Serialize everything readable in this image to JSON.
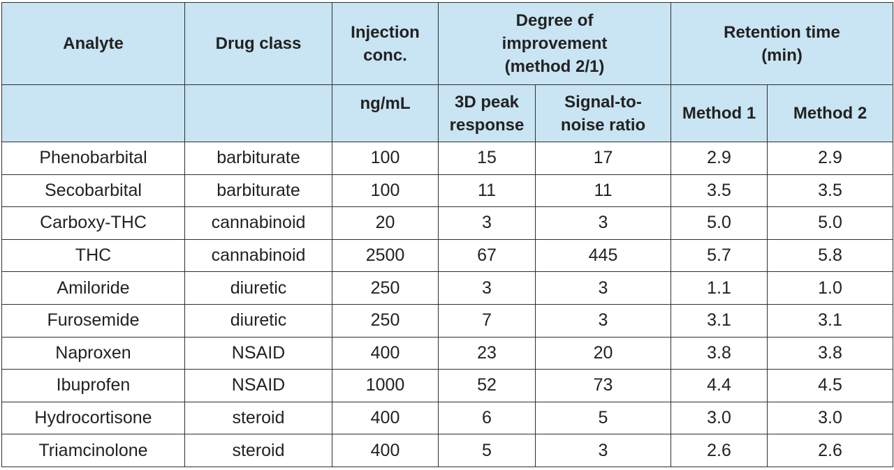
{
  "table": {
    "header_row1": {
      "analyte": "Analyte",
      "drug_class": "Drug class",
      "injection": "Injection conc.",
      "degree": "Degree of improvement (method 2/1)",
      "retention": "Retention time (min)"
    },
    "header_row2": {
      "analyte": "",
      "drug_class": "",
      "unit": "ng/mL",
      "peak": "3D peak response",
      "snr": "Signal-to-noise ratio",
      "method1": "Method 1",
      "method2": "Method 2"
    },
    "rows": [
      [
        "Phenobarbital",
        "barbiturate",
        "100",
        "15",
        "17",
        "2.9",
        "2.9"
      ],
      [
        "Secobarbital",
        "barbiturate",
        "100",
        "11",
        "11",
        "3.5",
        "3.5"
      ],
      [
        "Carboxy-THC",
        "cannabinoid",
        "20",
        "3",
        "3",
        "5.0",
        "5.0"
      ],
      [
        "THC",
        "cannabinoid",
        "2500",
        "67",
        "445",
        "5.7",
        "5.8"
      ],
      [
        "Amiloride",
        "diuretic",
        "250",
        "3",
        "3",
        "1.1",
        "1.0"
      ],
      [
        "Furosemide",
        "diuretic",
        "250",
        "7",
        "3",
        "3.1",
        "3.1"
      ],
      [
        "Naproxen",
        "NSAID",
        "400",
        "23",
        "20",
        "3.8",
        "3.8"
      ],
      [
        "Ibuprofen",
        "NSAID",
        "1000",
        "52",
        "73",
        "4.4",
        "4.5"
      ],
      [
        "Hydrocortisone",
        "steroid",
        "400",
        "6",
        "5",
        "3.0",
        "3.0"
      ],
      [
        "Triamcinolone",
        "steroid",
        "400",
        "5",
        "3",
        "2.6",
        "2.6"
      ]
    ]
  },
  "colors": {
    "header_bg": "#c9e4f2",
    "border": "#2f2f2f",
    "text": "#222222"
  }
}
